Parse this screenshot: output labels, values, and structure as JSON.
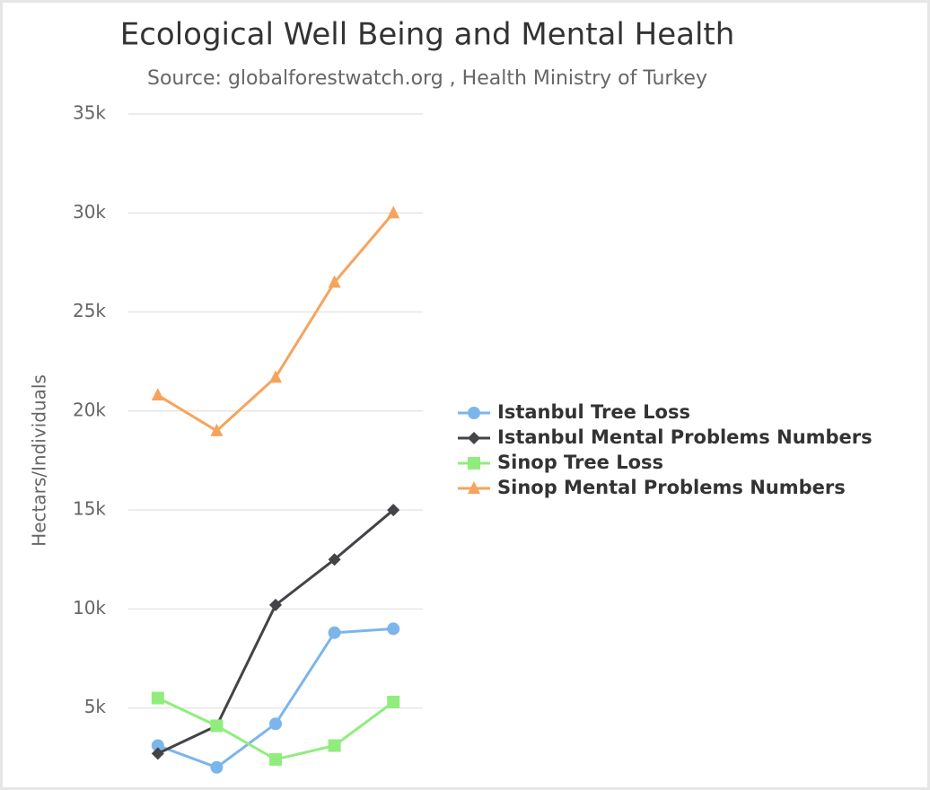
{
  "chart_data": {
    "type": "line",
    "title": "Ecological Well Being and Mental Health",
    "subtitle": "Source: globalforestwatch.org , Health Ministry of Turkey",
    "y_label": "Hectars/Individuals",
    "categories": [
      null,
      null,
      null,
      null,
      null
    ],
    "series": [
      {
        "name": "Istanbul Tree Loss",
        "color": "#7cb5ec",
        "marker": "circle",
        "values": [
          3100,
          2000,
          4200,
          8800,
          9000
        ]
      },
      {
        "name": "Istanbul Mental Problems Numbers",
        "color": "#434348",
        "marker": "diamond",
        "values": [
          2700,
          4100,
          10200,
          12500,
          15000
        ]
      },
      {
        "name": "Sinop Tree Loss",
        "color": "#90ed7d",
        "marker": "square",
        "values": [
          5500,
          4100,
          2400,
          3100,
          5300
        ]
      },
      {
        "name": "Sinop Mental Problems Numbers",
        "color": "#f7a35c",
        "marker": "triangle",
        "values": [
          20800,
          19000,
          21700,
          26500,
          30000
        ]
      }
    ],
    "ylim": [
      1400,
      35000
    ],
    "yticks": [
      {
        "value": 5000,
        "label": "5k"
      },
      {
        "value": 10000,
        "label": "10k"
      },
      {
        "value": 15000,
        "label": "15k"
      },
      {
        "value": 20000,
        "label": "20k"
      },
      {
        "value": 25000,
        "label": "25k"
      },
      {
        "value": 30000,
        "label": "30k"
      },
      {
        "value": 35000,
        "label": "35k"
      }
    ],
    "grid": true,
    "legend_position": "right"
  }
}
